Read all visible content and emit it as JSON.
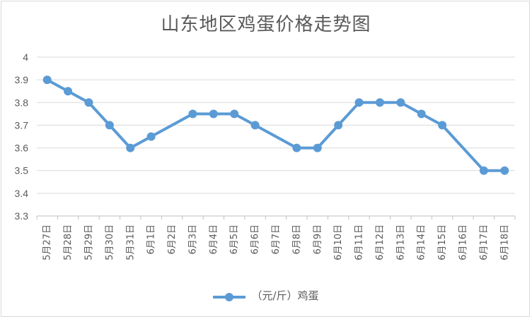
{
  "chart_data": {
    "type": "line",
    "title": "山东地区鸡蛋价格走势图",
    "xlabel": "",
    "ylabel": "",
    "categories": [
      "5月27日",
      "5月28日",
      "5月29日",
      "5月30日",
      "5月31日",
      "6月1日",
      "6月2日",
      "6月3日",
      "6月4日",
      "6月5日",
      "6月6日",
      "6月7日",
      "6月8日",
      "6月9日",
      "6月10日",
      "6月11日",
      "6月12日",
      "6月13日",
      "6月14日",
      "6月15日",
      "6月16日",
      "6月17日",
      "6月18日"
    ],
    "series": [
      {
        "name": "（元/斤）鸡蛋",
        "color": "#5b9bd5",
        "values": [
          3.9,
          3.85,
          3.8,
          3.7,
          3.6,
          3.65,
          null,
          3.75,
          3.75,
          3.75,
          3.7,
          null,
          3.6,
          3.6,
          3.7,
          3.8,
          3.8,
          3.8,
          3.75,
          3.7,
          null,
          3.5,
          3.5
        ]
      }
    ],
    "ylim": [
      3.3,
      4
    ],
    "yticks": [
      "4",
      "3.9",
      "3.8",
      "3.7",
      "3.6",
      "3.5",
      "3.4",
      "3.3"
    ],
    "grid": true,
    "legend": "bottom"
  }
}
